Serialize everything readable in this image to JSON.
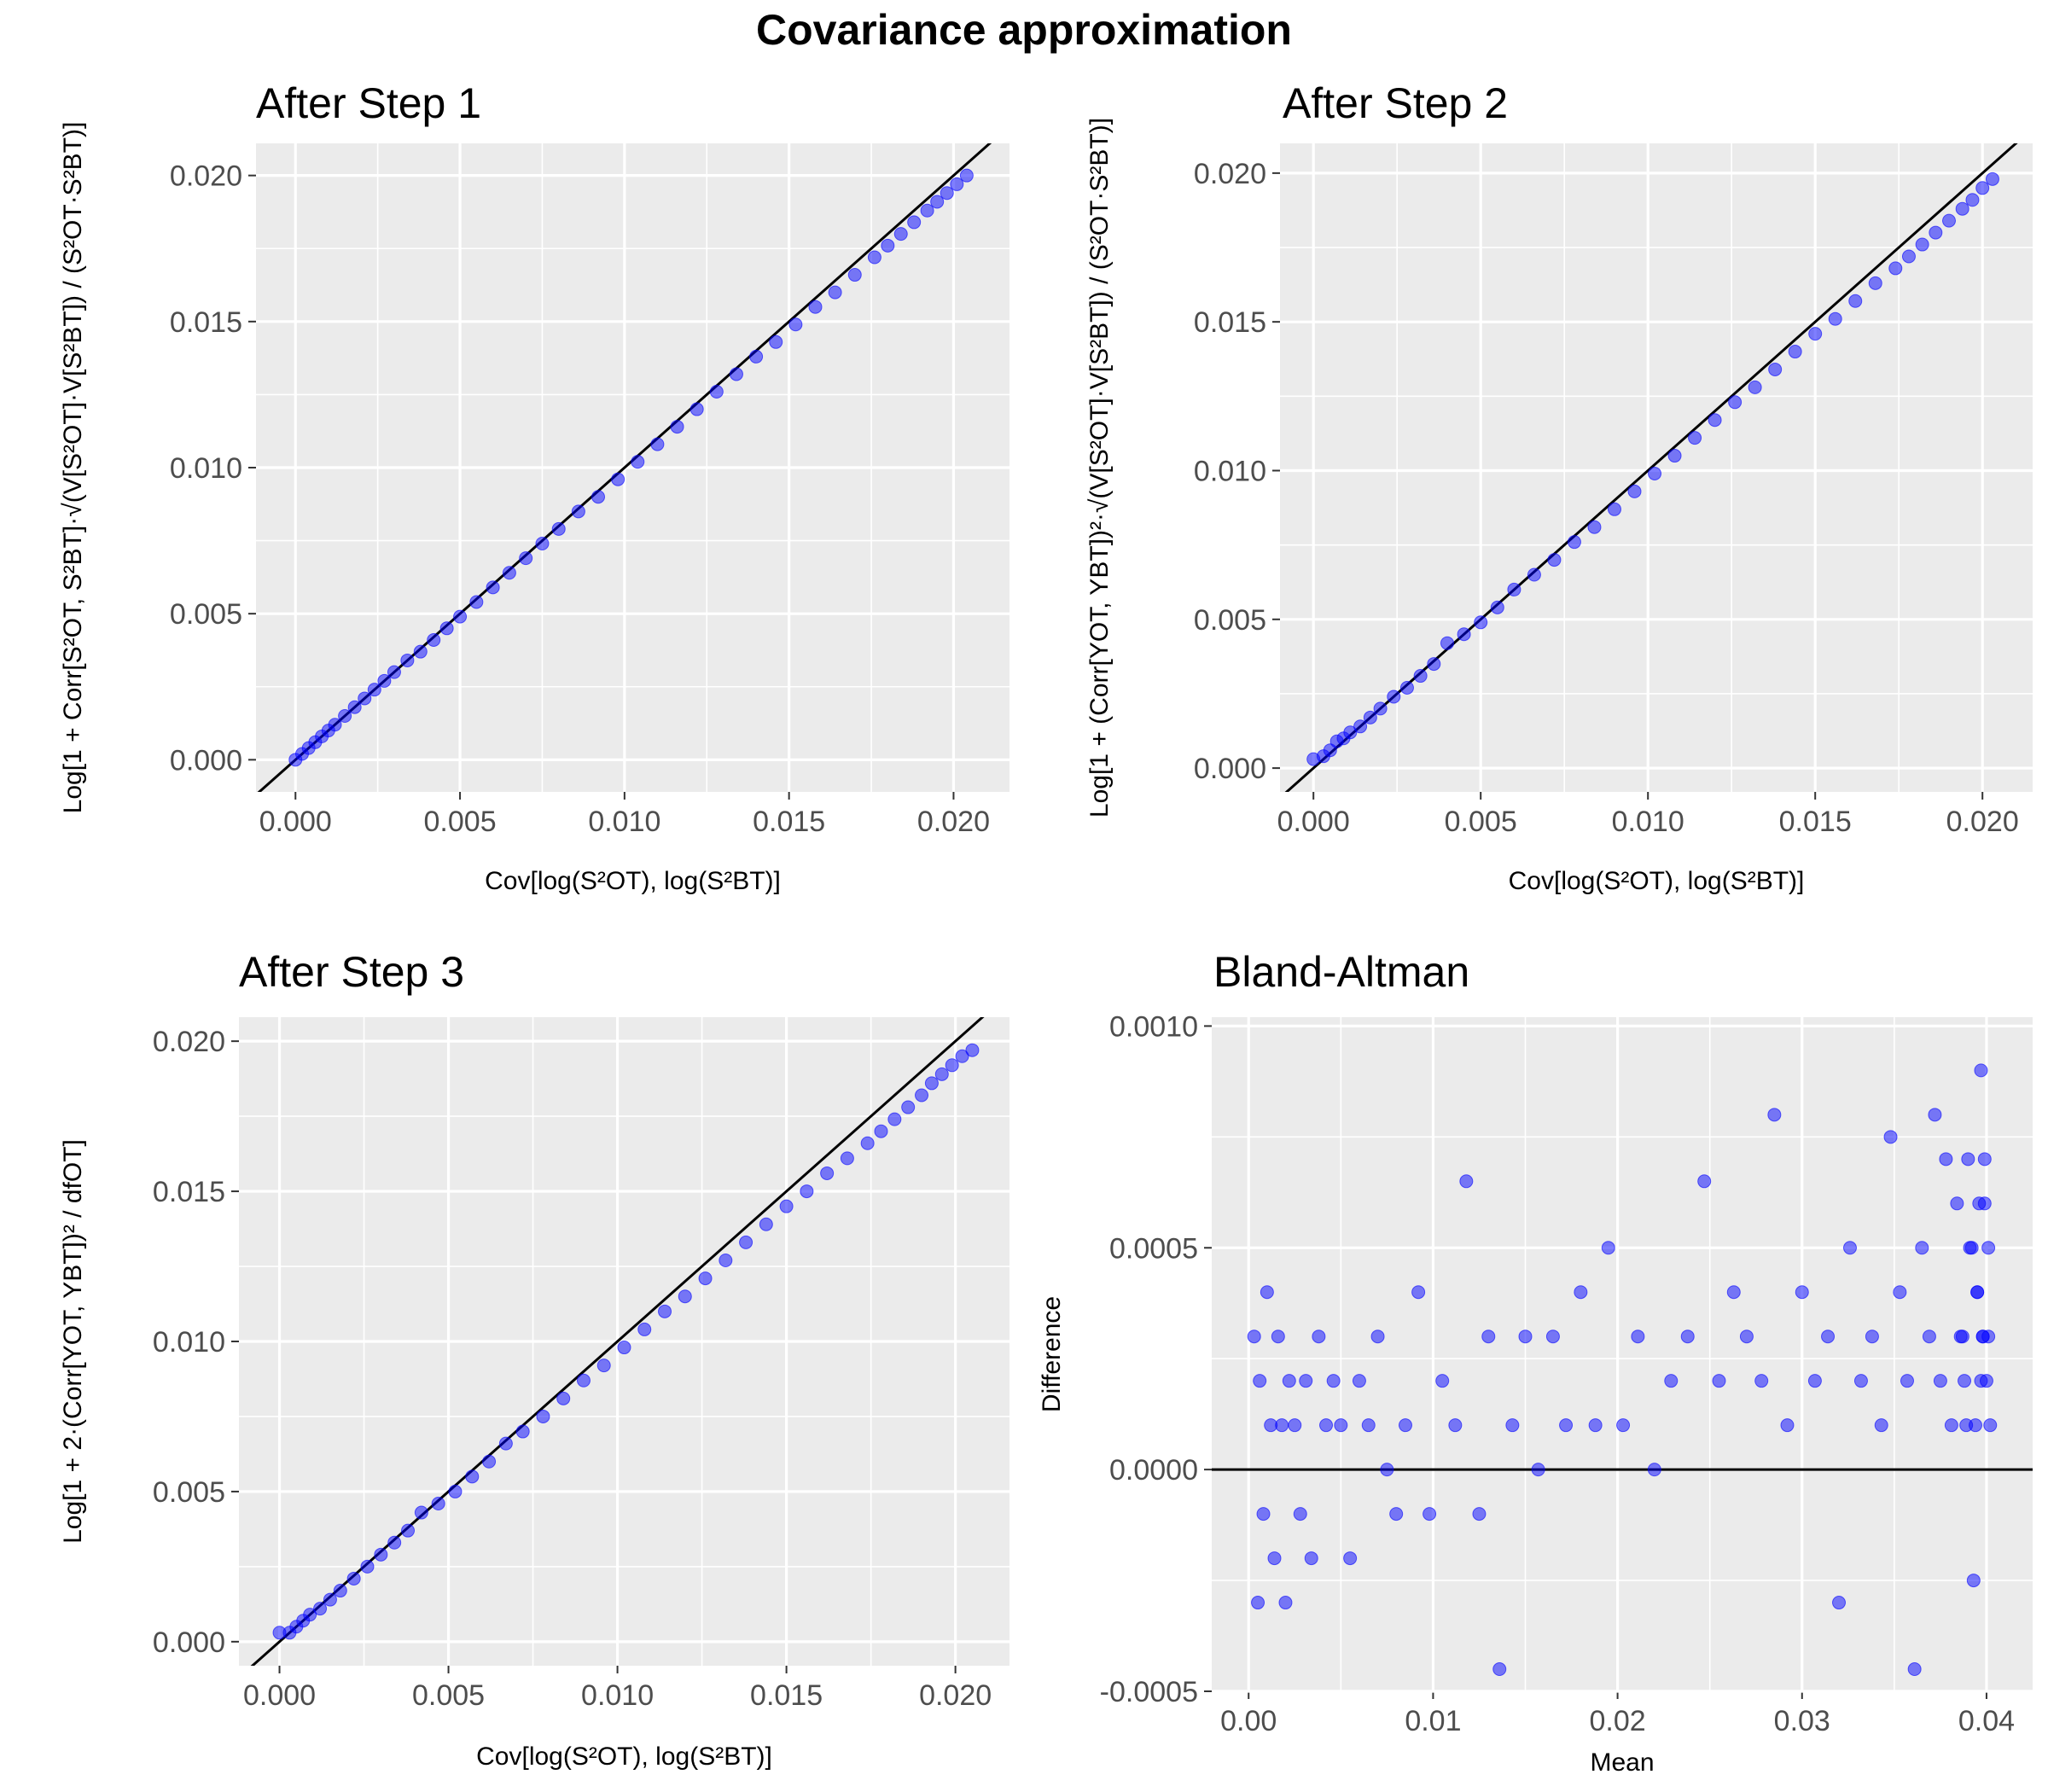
{
  "figure": {
    "title": "Covariance approximation"
  },
  "colors": {
    "panel": "#ebebeb",
    "grid": "#ffffff",
    "point": "#0000ff",
    "line": "#000000",
    "tick_text": "#4d4d4d"
  },
  "chart_data": [
    {
      "type": "scatter",
      "title": "After Step 1",
      "xlabel": "Cov[log(S²OT), log(S²BT)]",
      "ylabel": "Log[1 + Corr[S²OT, S²BT]·√(V[S²OT]·V[S²BT]) / (S²OT·S²BT)]",
      "xlim": [
        -0.0012,
        0.0217
      ],
      "ylim": [
        -0.0011,
        0.0211
      ],
      "x_ticks": [
        0.0,
        0.005,
        0.01,
        0.015,
        0.02
      ],
      "x_tick_labels": [
        "0.000",
        "0.005",
        "0.010",
        "0.015",
        "0.020"
      ],
      "y_ticks": [
        0.0,
        0.005,
        0.01,
        0.015,
        0.02
      ],
      "y_tick_labels": [
        "0.000",
        "0.005",
        "0.010",
        "0.015",
        "0.020"
      ],
      "reference_line": {
        "intercept": 0,
        "slope": 1
      },
      "x": [
        0.0,
        0.0002,
        0.0004,
        0.0006,
        0.0008,
        0.001,
        0.0012,
        0.0015,
        0.0018,
        0.0021,
        0.0024,
        0.0027,
        0.003,
        0.0034,
        0.0038,
        0.0042,
        0.0046,
        0.005,
        0.0055,
        0.006,
        0.0065,
        0.007,
        0.0075,
        0.008,
        0.0086,
        0.0092,
        0.0098,
        0.0104,
        0.011,
        0.0116,
        0.0122,
        0.0128,
        0.0134,
        0.014,
        0.0146,
        0.0152,
        0.0158,
        0.0164,
        0.017,
        0.0176,
        0.018,
        0.0184,
        0.0188,
        0.0192,
        0.0195,
        0.0198,
        0.0201,
        0.0204
      ],
      "y": [
        0.0,
        0.0002,
        0.0004,
        0.0006,
        0.0008,
        0.001,
        0.0012,
        0.0015,
        0.0018,
        0.0021,
        0.0024,
        0.0027,
        0.003,
        0.0034,
        0.0037,
        0.0041,
        0.0045,
        0.0049,
        0.0054,
        0.0059,
        0.0064,
        0.0069,
        0.0074,
        0.0079,
        0.0085,
        0.009,
        0.0096,
        0.0102,
        0.0108,
        0.0114,
        0.012,
        0.0126,
        0.0132,
        0.0138,
        0.0143,
        0.0149,
        0.0155,
        0.016,
        0.0166,
        0.0172,
        0.0176,
        0.018,
        0.0184,
        0.0188,
        0.0191,
        0.0194,
        0.0197,
        0.02
      ]
    },
    {
      "type": "scatter",
      "title": "After Step 2",
      "xlabel": "Cov[log(S²OT), log(S²BT)]",
      "ylabel": "Log[1 + (Corr[YOT, YBT])²·√(V[S²OT]·V[S²BT]) / (S²OT·S²BT)]",
      "xlim": [
        -0.001,
        0.0215
      ],
      "ylim": [
        -0.0008,
        0.021
      ],
      "x_ticks": [
        0.0,
        0.005,
        0.01,
        0.015,
        0.02
      ],
      "x_tick_labels": [
        "0.000",
        "0.005",
        "0.010",
        "0.015",
        "0.020"
      ],
      "y_ticks": [
        0.0,
        0.005,
        0.01,
        0.015,
        0.02
      ],
      "y_tick_labels": [
        "0.000",
        "0.005",
        "0.010",
        "0.015",
        "0.020"
      ],
      "reference_line": {
        "intercept": 0,
        "slope": 1
      },
      "x": [
        0.0,
        0.0003,
        0.0005,
        0.0007,
        0.0009,
        0.0011,
        0.0014,
        0.0017,
        0.002,
        0.0024,
        0.0028,
        0.0032,
        0.0036,
        0.004,
        0.0045,
        0.005,
        0.0055,
        0.006,
        0.0066,
        0.0072,
        0.0078,
        0.0084,
        0.009,
        0.0096,
        0.0102,
        0.0108,
        0.0114,
        0.012,
        0.0126,
        0.0132,
        0.0138,
        0.0144,
        0.015,
        0.0156,
        0.0162,
        0.0168,
        0.0174,
        0.0178,
        0.0182,
        0.0186,
        0.019,
        0.0194,
        0.0197,
        0.02,
        0.0203
      ],
      "y": [
        0.0003,
        0.0004,
        0.0006,
        0.0009,
        0.001,
        0.0012,
        0.0014,
        0.0017,
        0.002,
        0.0024,
        0.0027,
        0.0031,
        0.0035,
        0.0042,
        0.0045,
        0.0049,
        0.0054,
        0.006,
        0.0065,
        0.007,
        0.0076,
        0.0081,
        0.0087,
        0.0093,
        0.0099,
        0.0105,
        0.0111,
        0.0117,
        0.0123,
        0.0128,
        0.0134,
        0.014,
        0.0146,
        0.0151,
        0.0157,
        0.0163,
        0.0168,
        0.0172,
        0.0176,
        0.018,
        0.0184,
        0.0188,
        0.0191,
        0.0195,
        0.0198
      ]
    },
    {
      "type": "scatter",
      "title": "After Step 3",
      "xlabel": "Cov[log(S²OT), log(S²BT)]",
      "ylabel": "Log[1 + 2·(Corr[YOT, YBT])² / dfOT]",
      "xlim": [
        -0.0012,
        0.0216
      ],
      "ylim": [
        -0.0008,
        0.0208
      ],
      "x_ticks": [
        0.0,
        0.005,
        0.01,
        0.015,
        0.02
      ],
      "x_tick_labels": [
        "0.000",
        "0.005",
        "0.010",
        "0.015",
        "0.020"
      ],
      "y_ticks": [
        0.0,
        0.005,
        0.01,
        0.015,
        0.02
      ],
      "y_tick_labels": [
        "0.000",
        "0.005",
        "0.010",
        "0.015",
        "0.020"
      ],
      "reference_line": {
        "intercept": 0,
        "slope": 1
      },
      "x": [
        0.0,
        0.0003,
        0.0005,
        0.0007,
        0.0009,
        0.0012,
        0.0015,
        0.0018,
        0.0022,
        0.0026,
        0.003,
        0.0034,
        0.0038,
        0.0042,
        0.0047,
        0.0052,
        0.0057,
        0.0062,
        0.0067,
        0.0072,
        0.0078,
        0.0084,
        0.009,
        0.0096,
        0.0102,
        0.0108,
        0.0114,
        0.012,
        0.0126,
        0.0132,
        0.0138,
        0.0144,
        0.015,
        0.0156,
        0.0162,
        0.0168,
        0.0174,
        0.0178,
        0.0182,
        0.0186,
        0.019,
        0.0193,
        0.0196,
        0.0199,
        0.0202,
        0.0205
      ],
      "y": [
        0.0003,
        0.0003,
        0.0005,
        0.0007,
        0.0009,
        0.0011,
        0.0014,
        0.0017,
        0.0021,
        0.0025,
        0.0029,
        0.0033,
        0.0037,
        0.0043,
        0.0046,
        0.005,
        0.0055,
        0.006,
        0.0066,
        0.007,
        0.0075,
        0.0081,
        0.0087,
        0.0092,
        0.0098,
        0.0104,
        0.011,
        0.0115,
        0.0121,
        0.0127,
        0.0133,
        0.0139,
        0.0145,
        0.015,
        0.0156,
        0.0161,
        0.0166,
        0.017,
        0.0174,
        0.0178,
        0.0182,
        0.0186,
        0.0189,
        0.0192,
        0.0195,
        0.0197
      ]
    },
    {
      "type": "scatter",
      "title": "Bland-Altman",
      "xlabel": "Mean",
      "ylabel": "Difference",
      "xlim": [
        -0.002,
        0.0425
      ],
      "ylim": [
        -0.0005,
        0.00102
      ],
      "x_ticks": [
        0.0,
        0.01,
        0.02,
        0.03,
        0.04
      ],
      "x_tick_labels": [
        "0.00",
        "0.01",
        "0.02",
        "0.03",
        "0.04"
      ],
      "y_ticks": [
        -0.0005,
        0.0,
        0.0005,
        0.001
      ],
      "y_tick_labels": [
        "-0.0005",
        "0.0000",
        "0.0005",
        "0.0010"
      ],
      "reference_line": {
        "intercept": 0,
        "slope": 0
      },
      "x": [
        0.0003,
        0.0005,
        0.0006,
        0.0008,
        0.001,
        0.0012,
        0.0014,
        0.0016,
        0.0018,
        0.002,
        0.0022,
        0.0025,
        0.0028,
        0.0031,
        0.0034,
        0.0038,
        0.0042,
        0.0046,
        0.005,
        0.0055,
        0.006,
        0.0065,
        0.007,
        0.0075,
        0.008,
        0.0085,
        0.0092,
        0.0098,
        0.0105,
        0.0112,
        0.0118,
        0.0125,
        0.013,
        0.0136,
        0.0143,
        0.015,
        0.0157,
        0.0165,
        0.0172,
        0.018,
        0.0188,
        0.0195,
        0.0203,
        0.0211,
        0.022,
        0.0229,
        0.0238,
        0.0247,
        0.0255,
        0.0263,
        0.027,
        0.0278,
        0.0285,
        0.0292,
        0.03,
        0.0307,
        0.0314,
        0.032,
        0.0326,
        0.0332,
        0.0338,
        0.0343,
        0.0348,
        0.0353,
        0.0357,
        0.0361,
        0.0365,
        0.0369,
        0.0372,
        0.0375,
        0.0378,
        0.0381,
        0.0384,
        0.0387,
        0.0389,
        0.0391,
        0.0393,
        0.0395,
        0.0397,
        0.0398,
        0.0399,
        0.04,
        0.0401,
        0.0402,
        0.0401,
        0.0399,
        0.0397,
        0.0395,
        0.0396,
        0.0398,
        0.0394,
        0.0392,
        0.039,
        0.0388,
        0.0386
      ],
      "y": [
        0.0003,
        -0.0003,
        0.0002,
        -0.0001,
        0.0004,
        0.0001,
        -0.0002,
        0.0003,
        0.0001,
        -0.0003,
        0.0002,
        0.0001,
        -0.0001,
        0.0002,
        -0.0002,
        0.0003,
        0.0001,
        0.0002,
        0.0001,
        -0.0002,
        0.0002,
        0.0001,
        0.0003,
        0.0,
        -0.0001,
        0.0001,
        0.0004,
        -0.0001,
        0.0002,
        0.0001,
        0.00065,
        -0.0001,
        0.0003,
        -0.00045,
        0.0001,
        0.0003,
        0.0,
        0.0003,
        0.0001,
        0.0004,
        0.0001,
        0.0005,
        0.0001,
        0.0003,
        0.0,
        0.0002,
        0.0003,
        0.00065,
        0.0002,
        0.0004,
        0.0003,
        0.0002,
        0.0008,
        0.0001,
        0.0004,
        0.0002,
        0.0003,
        -0.0003,
        0.0005,
        0.0002,
        0.0003,
        0.0001,
        0.00075,
        0.0004,
        0.0002,
        -0.00045,
        0.0005,
        0.0003,
        0.0008,
        0.0002,
        0.0007,
        0.0001,
        0.0006,
        0.0003,
        0.0001,
        0.0005,
        -0.00025,
        0.0004,
        0.0009,
        0.0003,
        0.0006,
        0.0002,
        0.0005,
        0.0001,
        0.0003,
        0.0007,
        0.0002,
        0.0004,
        0.0006,
        0.0003,
        0.0001,
        0.0005,
        0.0007,
        0.0002,
        0.0003
      ]
    }
  ]
}
